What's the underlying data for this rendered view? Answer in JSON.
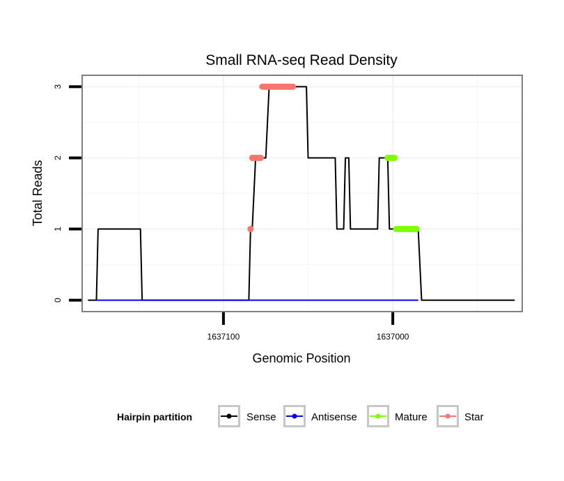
{
  "chart_data": {
    "type": "line",
    "title": "Small RNA-seq Read Density",
    "xlabel": "Genomic Position",
    "ylabel": "Total Reads",
    "x_reversed": true,
    "xlim": [
      1637183,
      1636924
    ],
    "ylim": [
      -0.15,
      3.15
    ],
    "x_ticks": [
      1637100,
      1637000
    ],
    "x_tick_labels": [
      "1637100",
      "1637000"
    ],
    "y_ticks": [
      0,
      1,
      2,
      3
    ],
    "y_tick_labels": [
      "0",
      "1",
      "2",
      "3"
    ],
    "grid": true,
    "legend": {
      "title": "Hairpin partition",
      "position": "bottom",
      "entries": [
        "Sense",
        "Antisense",
        "Mature",
        "Star"
      ]
    },
    "series": [
      {
        "name": "Sense",
        "color": "#000000",
        "style": "line",
        "x": [
          1637180,
          1637175,
          1637174,
          1637149,
          1637148,
          1637085,
          1637084,
          1637083,
          1637081,
          1637077,
          1637075,
          1637073,
          1637068,
          1637061,
          1637060,
          1637057,
          1637053,
          1637051,
          1637050,
          1637049,
          1637047,
          1637046,
          1637045,
          1637034,
          1637033,
          1637029,
          1637028,
          1637026,
          1637025,
          1637021,
          1637020,
          1637011,
          1637010,
          1637009,
          1637008,
          1637004,
          1637003,
          1637002,
          1636999,
          1636998,
          1636990,
          1636989,
          1636988,
          1636985,
          1636983,
          1636928
        ],
        "y": [
          0,
          0,
          1,
          1,
          0,
          0,
          1,
          1,
          2,
          2,
          2,
          3,
          3,
          3,
          3,
          3,
          3,
          3,
          2,
          2,
          2,
          2,
          2,
          2,
          1,
          1,
          2,
          2,
          1,
          1,
          1,
          1,
          1,
          1,
          2,
          2,
          2,
          1,
          1,
          1,
          1,
          1,
          1,
          1,
          0,
          0
        ]
      },
      {
        "name": "Antisense",
        "color": "#0000ff",
        "style": "line",
        "x": [
          1637175,
          1636985
        ],
        "y": [
          0,
          0
        ]
      },
      {
        "name": "Mature",
        "color": "#7fff00",
        "style": "points",
        "x": [
          1637003,
          1637002,
          1637001,
          1637000,
          1636999,
          1636998,
          1636997,
          1636996,
          1636995,
          1636994,
          1636993,
          1636992,
          1636991,
          1636990,
          1636989,
          1636988,
          1636987,
          1636986
        ],
        "y": [
          2,
          2,
          2,
          2,
          2,
          1,
          1,
          1,
          1,
          1,
          1,
          1,
          1,
          1,
          1,
          1,
          1,
          1
        ]
      },
      {
        "name": "Star",
        "color": "#f8766d",
        "style": "points",
        "x": [
          1637084,
          1637083,
          1637082,
          1637081,
          1637080,
          1637079,
          1637078,
          1637077,
          1637076,
          1637075,
          1637074,
          1637073,
          1637072,
          1637071,
          1637070,
          1637069,
          1637068,
          1637067,
          1637066,
          1637065,
          1637064,
          1637063,
          1637062,
          1637061,
          1637060,
          1637059
        ],
        "y": [
          1,
          2,
          2,
          2,
          2,
          2,
          2,
          3,
          3,
          3,
          3,
          3,
          3,
          3,
          3,
          3,
          3,
          3,
          3,
          3,
          3,
          3,
          3,
          3,
          3,
          3
        ]
      }
    ]
  }
}
